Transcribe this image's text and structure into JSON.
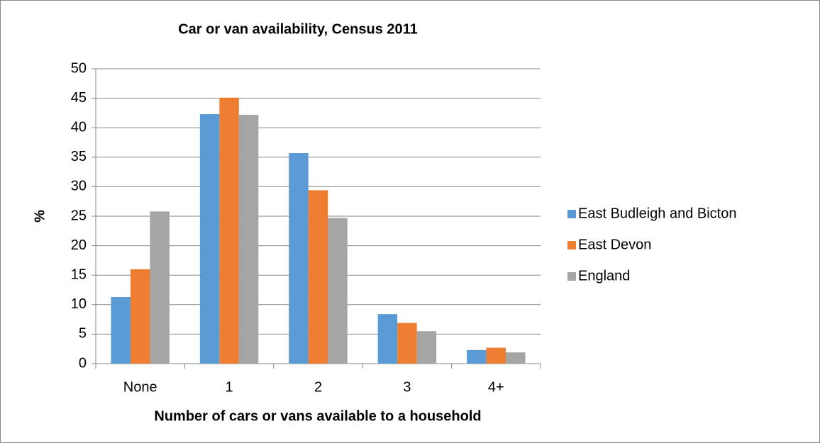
{
  "chart_data": {
    "type": "bar",
    "title": "Car or van availability,  Census 2011",
    "xlabel": "Number of cars or vans available to a household",
    "ylabel": "%",
    "categories": [
      "None",
      "1",
      "2",
      "3",
      "4+"
    ],
    "series": [
      {
        "name": "East Budleigh and Bicton",
        "color": "#5b9bd5",
        "values": [
          11.3,
          42.3,
          35.7,
          8.4,
          2.3
        ]
      },
      {
        "name": "East Devon",
        "color": "#ed7d31",
        "values": [
          16.0,
          45.1,
          29.4,
          6.9,
          2.7
        ]
      },
      {
        "name": "England",
        "color": "#a5a5a5",
        "values": [
          25.8,
          42.2,
          24.7,
          5.5,
          1.9
        ]
      }
    ],
    "ylim": [
      0,
      50
    ],
    "yticks": [
      0,
      5,
      10,
      15,
      20,
      25,
      30,
      35,
      40,
      45,
      50
    ],
    "grid": true,
    "legend": "right"
  }
}
